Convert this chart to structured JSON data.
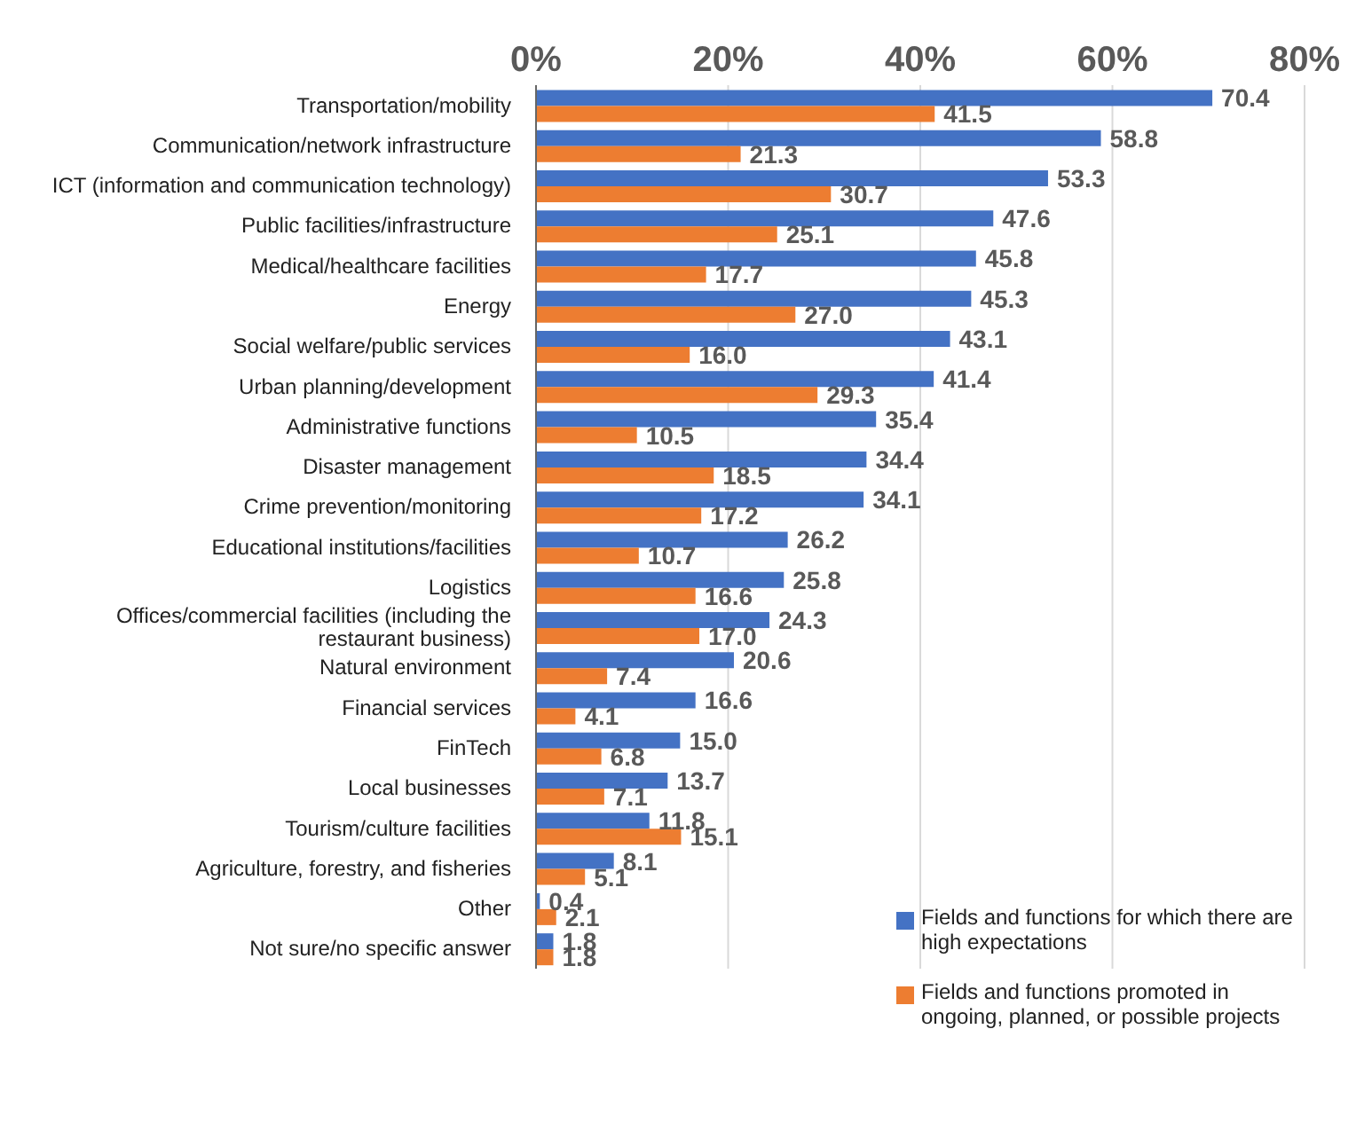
{
  "chart_data": {
    "type": "bar",
    "orientation": "horizontal",
    "categories": [
      "Transportation/mobility",
      "Communication/network infrastructure",
      "ICT (information and communication technology)",
      "Public facilities/infrastructure",
      "Medical/healthcare facilities",
      "Energy",
      "Social welfare/public services",
      "Urban planning/development",
      "Administrative functions",
      "Disaster management",
      "Crime prevention/monitoring",
      "Educational institutions/facilities",
      "Logistics",
      "Offices/commercial facilities (including the restaurant business)",
      "Natural environment",
      "Financial services",
      "FinTech",
      "Local businesses",
      "Tourism/culture facilities",
      "Agriculture, forestry, and fisheries",
      "Other",
      "Not sure/no specific answer"
    ],
    "series": [
      {
        "name": "Fields and functions for which there are high expectations",
        "color": "#4472c4",
        "values": [
          70.4,
          58.8,
          53.3,
          47.6,
          45.8,
          45.3,
          43.1,
          41.4,
          35.4,
          34.4,
          34.1,
          26.2,
          25.8,
          24.3,
          20.6,
          16.6,
          15.0,
          13.7,
          11.8,
          8.1,
          0.4,
          1.8
        ],
        "value_labels": [
          "70.4",
          "58.8",
          "53.3",
          "47.6",
          "45.8",
          "45.3",
          "43.1",
          "41.4",
          "35.4",
          "34.4",
          "34.1",
          "26.2",
          "25.8",
          "24.3",
          "20.6",
          "16.6",
          "15.0",
          "13.7",
          "11.8",
          "8.1",
          "0.4",
          "1.8"
        ]
      },
      {
        "name": "Fields and functions promoted in ongoing, planned, or possible projects",
        "color": "#ed7d31",
        "values": [
          41.5,
          21.3,
          30.7,
          25.1,
          17.7,
          27.0,
          16.0,
          29.3,
          10.5,
          18.5,
          17.2,
          10.7,
          16.6,
          17.0,
          7.4,
          4.1,
          6.8,
          7.1,
          15.1,
          5.1,
          2.1,
          1.8
        ],
        "value_labels": [
          "41.5",
          "21.3",
          "30.7",
          "25.1",
          "17.7",
          "27.0",
          "16.0",
          "29.3",
          "10.5",
          "18.5",
          "17.2",
          "10.7",
          "16.6",
          "17.0",
          "7.4",
          "4.1",
          "6.8",
          "7.1",
          "15.1",
          "5.1",
          "2.1",
          "1.8"
        ]
      }
    ],
    "xlim": [
      0,
      80
    ],
    "xticks": [
      {
        "value": 0,
        "label": "0%"
      },
      {
        "value": 20,
        "label": "20%"
      },
      {
        "value": 40,
        "label": "40%"
      },
      {
        "value": 60,
        "label": "60%"
      },
      {
        "value": 80,
        "label": "80%"
      }
    ],
    "grid": "x",
    "legend": "bottom right"
  }
}
